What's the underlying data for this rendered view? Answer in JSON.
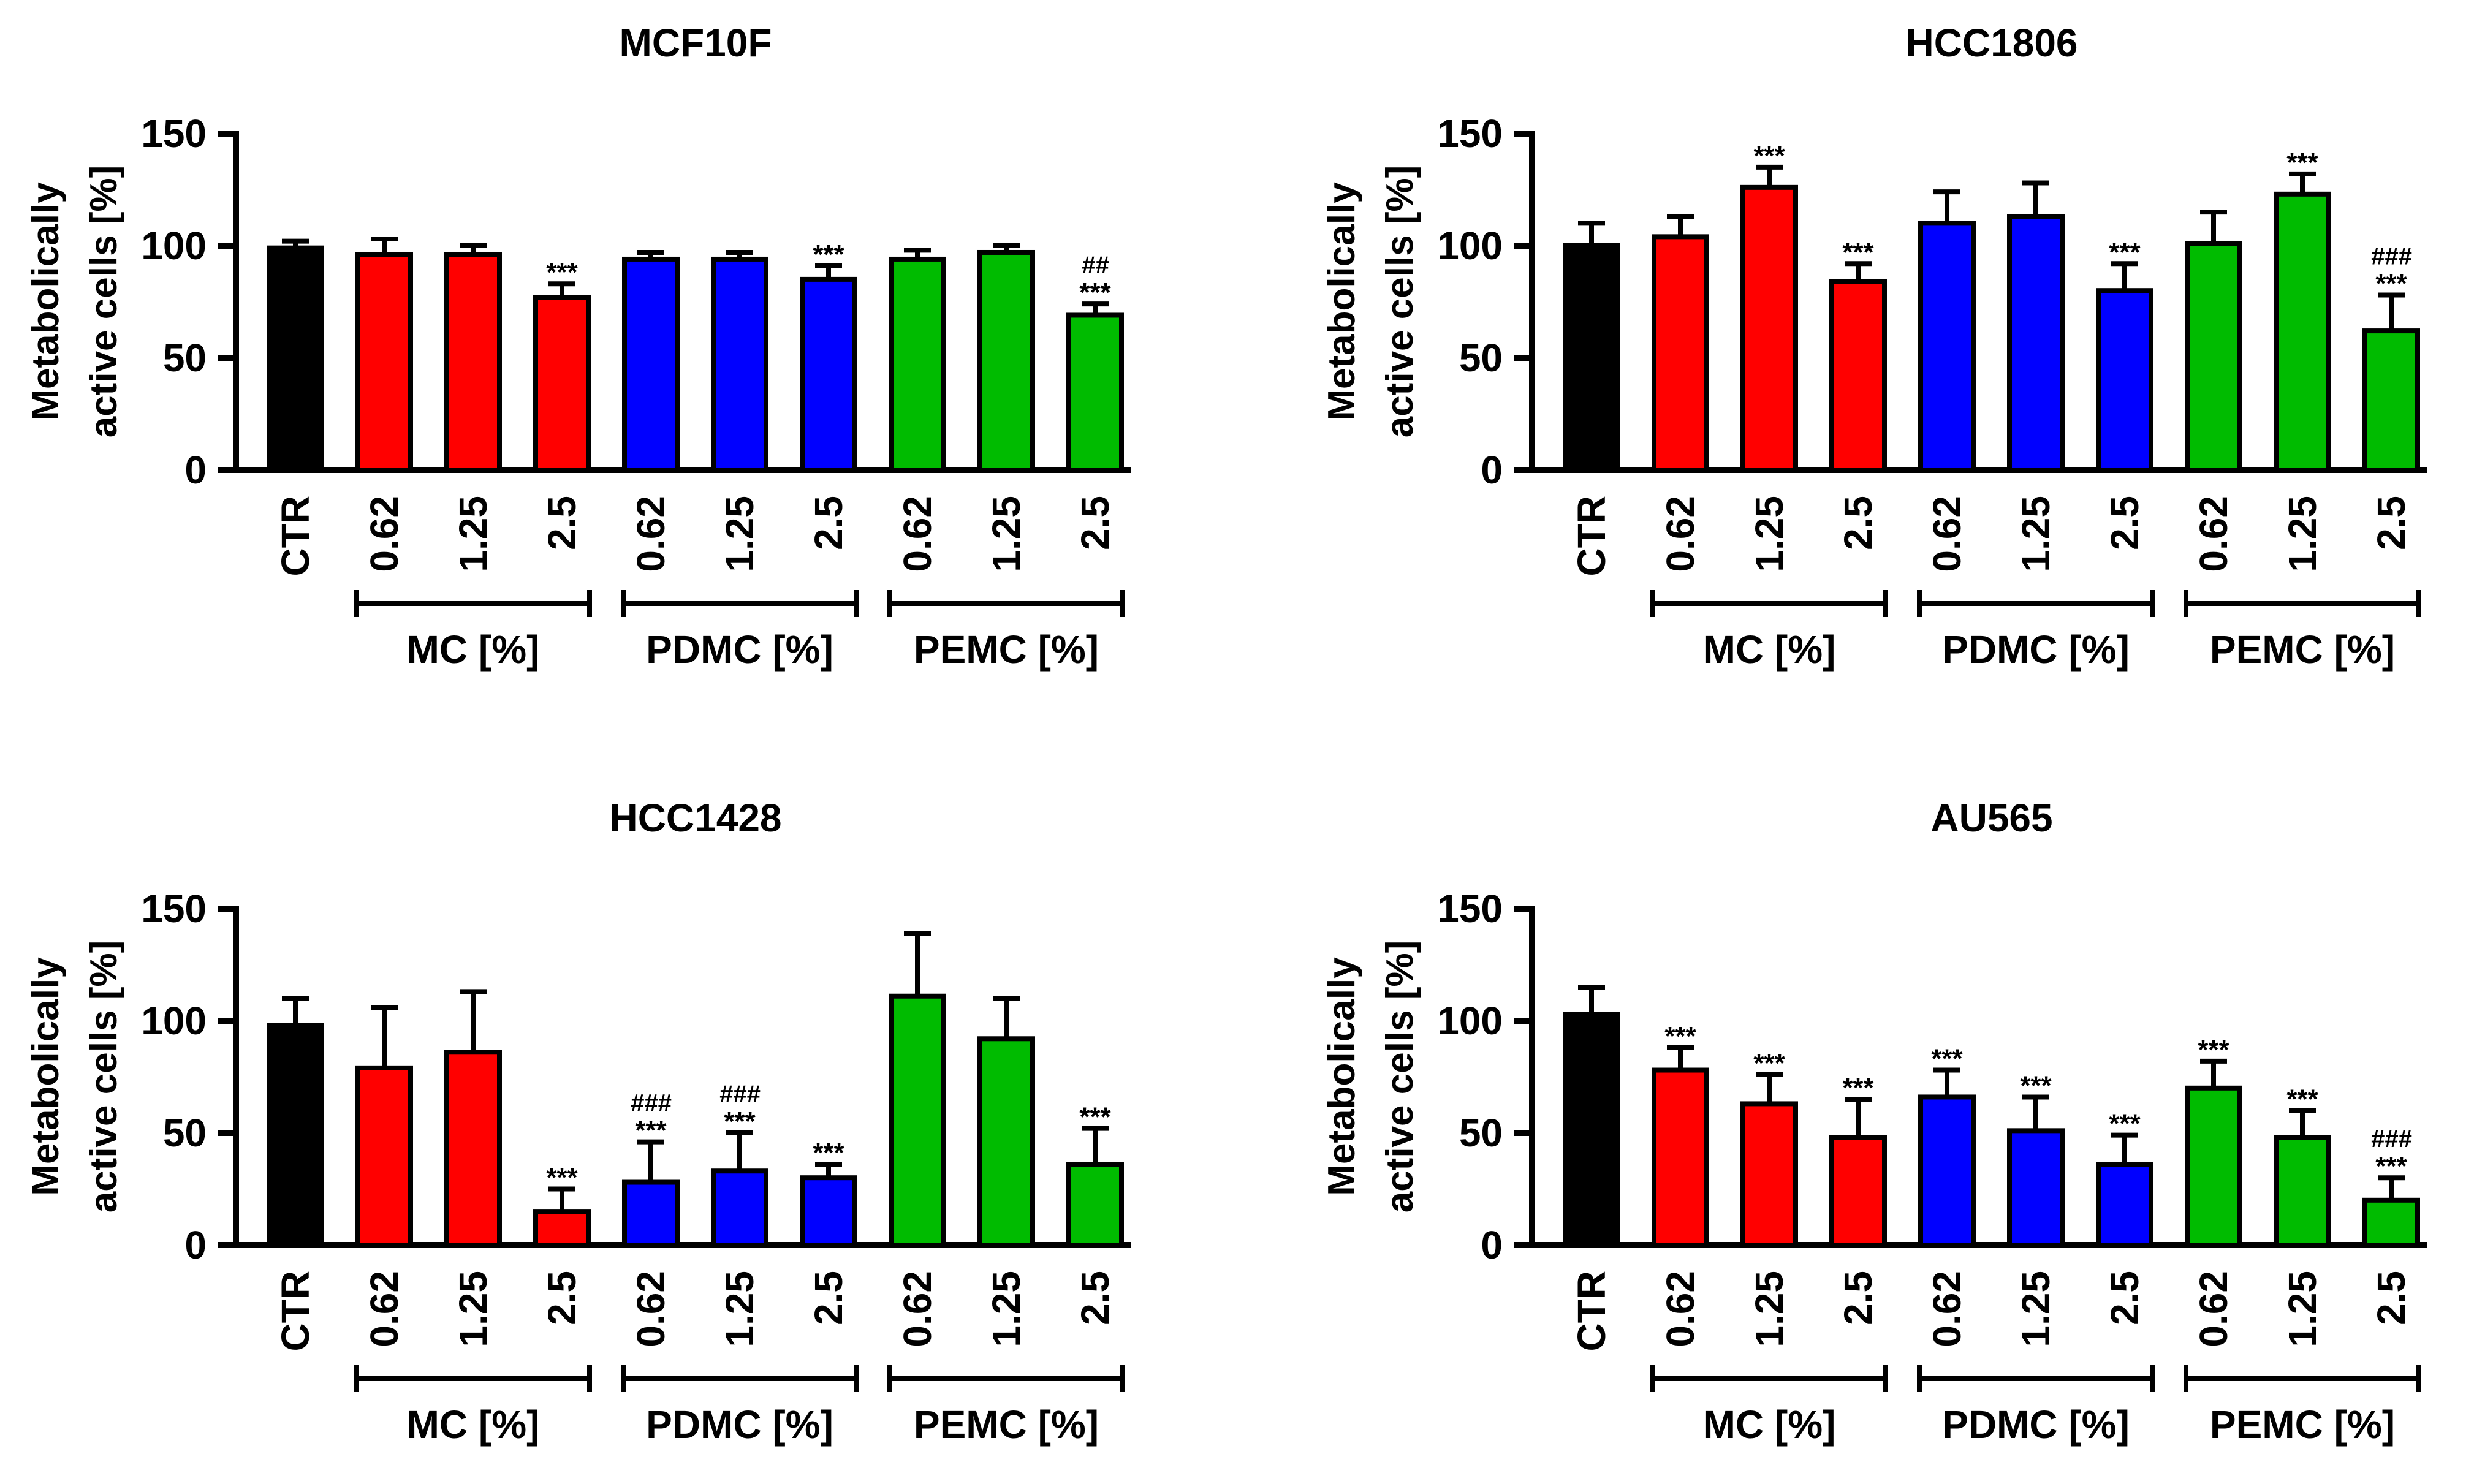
{
  "figure": {
    "ylabel_line1": "Metabolically",
    "ylabel_line2": "active cells [%]"
  },
  "colors": {
    "control": "#000000",
    "MC": "#ff0000",
    "PDMC": "#0000ff",
    "PEMC": "#00bb00"
  },
  "chart_data": [
    {
      "type": "bar",
      "title": "MCF10F",
      "ylabel": "Metabolically active cells [%]",
      "ylim": [
        0,
        150
      ],
      "yticks": [
        "0",
        "50",
        "100",
        "150"
      ],
      "categories": [
        "CTR",
        "0.62",
        "1.25",
        "2.5",
        "0.62",
        "1.25",
        "2.5",
        "0.62",
        "1.25",
        "2.5"
      ],
      "groups": [
        "control",
        "MC",
        "MC",
        "MC",
        "PDMC",
        "PDMC",
        "PDMC",
        "PEMC",
        "PEMC",
        "PEMC"
      ],
      "values": [
        99,
        96,
        96,
        77,
        94,
        94,
        85,
        94,
        97,
        69
      ],
      "errors": [
        3,
        7,
        4,
        6,
        3,
        3,
        6,
        4,
        3,
        5
      ],
      "sig": [
        "",
        "",
        "",
        "***",
        "",
        "",
        "***",
        "",
        "",
        "***"
      ],
      "sig2": [
        "",
        "",
        "",
        "",
        "",
        "",
        "",
        "",
        "",
        "##"
      ],
      "group_labels": [
        "MC [%]",
        "PDMC [%]",
        "PEMC [%]"
      ]
    },
    {
      "type": "bar",
      "title": "HCC1806",
      "ylabel": "Metabolically active cells [%]",
      "ylim": [
        0,
        150
      ],
      "yticks": [
        "0",
        "50",
        "100",
        "150"
      ],
      "categories": [
        "CTR",
        "0.62",
        "1.25",
        "2.5",
        "0.62",
        "1.25",
        "2.5",
        "0.62",
        "1.25",
        "2.5"
      ],
      "groups": [
        "control",
        "MC",
        "MC",
        "MC",
        "PDMC",
        "PDMC",
        "PDMC",
        "PEMC",
        "PEMC",
        "PEMC"
      ],
      "values": [
        100,
        104,
        126,
        84,
        110,
        113,
        80,
        101,
        123,
        62
      ],
      "errors": [
        10,
        9,
        9,
        8,
        14,
        15,
        12,
        14,
        9,
        16
      ],
      "sig": [
        "",
        "",
        "***",
        "***",
        "",
        "",
        "***",
        "",
        "***",
        "***"
      ],
      "sig2": [
        "",
        "",
        "",
        "",
        "",
        "",
        "",
        "",
        "",
        "###"
      ],
      "group_labels": [
        "MC [%]",
        "PDMC [%]",
        "PEMC [%]"
      ]
    },
    {
      "type": "bar",
      "title": "HCC1428",
      "ylabel": "Metabolically active cells [%]",
      "ylim": [
        0,
        150
      ],
      "yticks": [
        "0",
        "50",
        "100",
        "150"
      ],
      "categories": [
        "CTR",
        "0.62",
        "1.25",
        "2.5",
        "0.62",
        "1.25",
        "2.5",
        "0.62",
        "1.25",
        "2.5"
      ],
      "groups": [
        "control",
        "MC",
        "MC",
        "MC",
        "PDMC",
        "PDMC",
        "PDMC",
        "PEMC",
        "PEMC",
        "PEMC"
      ],
      "values": [
        98,
        79,
        86,
        15,
        28,
        33,
        30,
        111,
        92,
        36
      ],
      "errors": [
        12,
        27,
        27,
        10,
        18,
        17,
        6,
        28,
        18,
        16
      ],
      "sig": [
        "",
        "",
        "",
        "***",
        "***",
        "***",
        "***",
        "",
        "",
        "***"
      ],
      "sig2": [
        "",
        "",
        "",
        "",
        "###",
        "###",
        "",
        "",
        "",
        ""
      ],
      "group_labels": [
        "MC [%]",
        "PDMC [%]",
        "PEMC [%]"
      ]
    },
    {
      "type": "bar",
      "title": "AU565",
      "ylabel": "Metabolically active cells [%]",
      "ylim": [
        0,
        150
      ],
      "yticks": [
        "0",
        "50",
        "100",
        "150"
      ],
      "categories": [
        "CTR",
        "0.62",
        "1.25",
        "2.5",
        "0.62",
        "1.25",
        "2.5",
        "0.62",
        "1.25",
        "2.5"
      ],
      "groups": [
        "control",
        "MC",
        "MC",
        "MC",
        "PDMC",
        "PDMC",
        "PDMC",
        "PEMC",
        "PEMC",
        "PEMC"
      ],
      "values": [
        103,
        78,
        63,
        48,
        66,
        51,
        36,
        70,
        48,
        20
      ],
      "errors": [
        12,
        10,
        13,
        17,
        12,
        15,
        13,
        12,
        12,
        10
      ],
      "sig": [
        "",
        "***",
        "***",
        "***",
        "***",
        "***",
        "***",
        "***",
        "***",
        "***"
      ],
      "sig2": [
        "",
        "",
        "",
        "",
        "",
        "",
        "",
        "",
        "",
        "###"
      ],
      "group_labels": [
        "MC [%]",
        "PDMC [%]",
        "PEMC [%]"
      ]
    }
  ]
}
